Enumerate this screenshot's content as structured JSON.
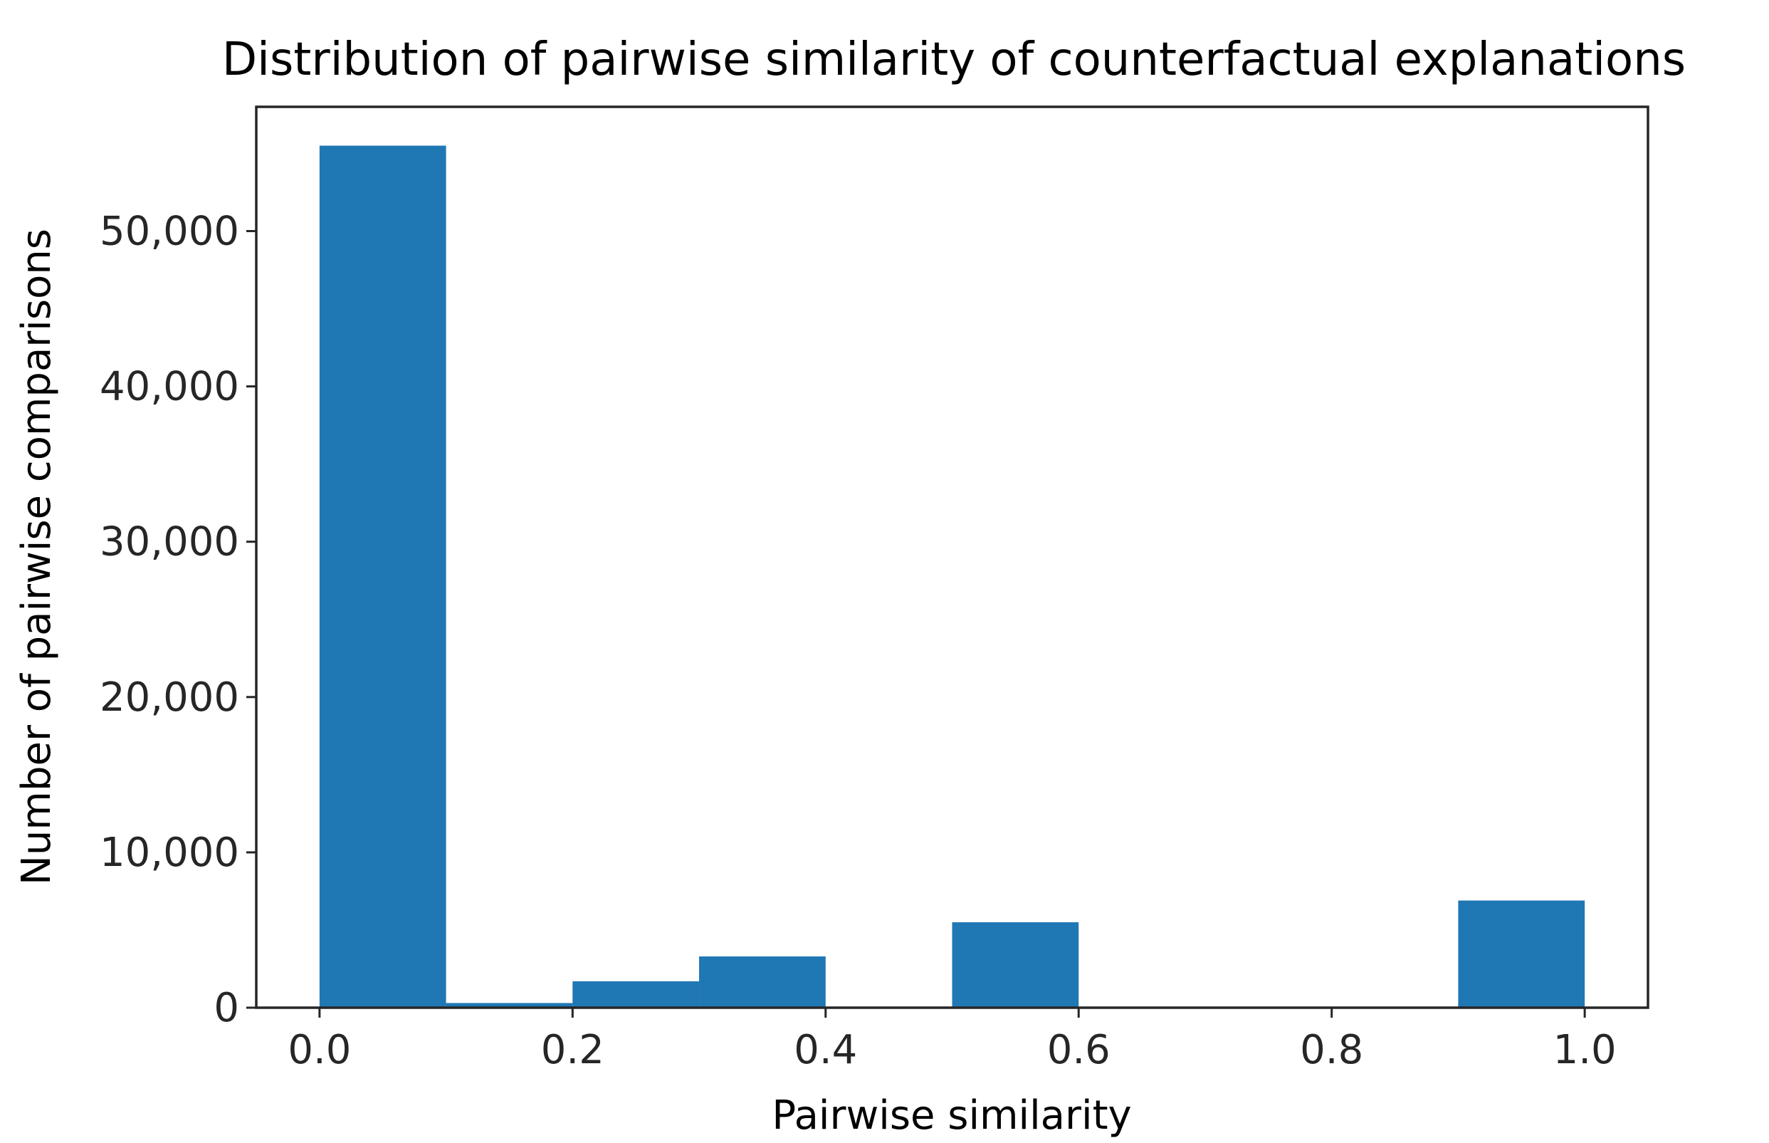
{
  "chart_data": {
    "type": "bar",
    "title": "Distribution of pairwise similarity of counterfactual explanations",
    "xlabel": "Pairwise similarity",
    "ylabel": "Number of pairwise comparisons",
    "xlim": [
      -0.05,
      1.05
    ],
    "ylim": [
      0,
      58000
    ],
    "grid": false,
    "color": "#1f77b4",
    "bins": [
      {
        "x0": 0.0,
        "x1": 0.1,
        "value": 55500
      },
      {
        "x0": 0.1,
        "x1": 0.2,
        "value": 300
      },
      {
        "x0": 0.2,
        "x1": 0.3,
        "value": 1700
      },
      {
        "x0": 0.3,
        "x1": 0.4,
        "value": 3300
      },
      {
        "x0": 0.4,
        "x1": 0.5,
        "value": 0
      },
      {
        "x0": 0.5,
        "x1": 0.6,
        "value": 5500
      },
      {
        "x0": 0.6,
        "x1": 0.7,
        "value": 0
      },
      {
        "x0": 0.7,
        "x1": 0.8,
        "value": 0
      },
      {
        "x0": 0.8,
        "x1": 0.9,
        "value": 0
      },
      {
        "x0": 0.9,
        "x1": 1.0,
        "value": 6900
      }
    ],
    "xticks": [
      {
        "value": 0.0,
        "label": "0.0"
      },
      {
        "value": 0.2,
        "label": "0.2"
      },
      {
        "value": 0.4,
        "label": "0.4"
      },
      {
        "value": 0.6,
        "label": "0.6"
      },
      {
        "value": 0.8,
        "label": "0.8"
      },
      {
        "value": 1.0,
        "label": "1.0"
      }
    ],
    "yticks": [
      {
        "value": 0,
        "label": "0"
      },
      {
        "value": 10000,
        "label": "10,000"
      },
      {
        "value": 20000,
        "label": "20,000"
      },
      {
        "value": 30000,
        "label": "30,000"
      },
      {
        "value": 40000,
        "label": "40,000"
      },
      {
        "value": 50000,
        "label": "50,000"
      }
    ]
  }
}
